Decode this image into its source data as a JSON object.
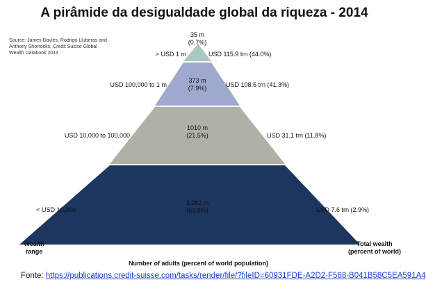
{
  "title": "A pirâmide da desigualdade global da riqueza - 2014",
  "source_note": "Source: James Davies, Rodrigo Lluberas and Anthony Shorrocks, Credit Suisse Global Wealth Databook 2014",
  "axis": {
    "left_title_line1": "Wealth",
    "left_title_line2": "range",
    "right_title_line1": "Total wealth",
    "right_title_line2": "(percent of world)",
    "bottom_title": "Number of adults (percent of world population)"
  },
  "colors": {
    "tier1": "#a9c9c0",
    "tier2": "#9fa8cd",
    "tier3": "#b0b1a6",
    "tier4": "#1c3660"
  },
  "chart_data": {
    "type": "pyramid",
    "title": "A pirâmide da desigualdade global da riqueza - 2014",
    "tiers": [
      {
        "range": "> USD 1 m",
        "adults": "35 m",
        "adults_pct": "(0.7%)",
        "adults_millions": 35,
        "adults_percent": 0.7,
        "wealth": "USD 115.9 trn (44.0%)",
        "wealth_trn": 115.9,
        "wealth_percent": 44.0
      },
      {
        "range": "USD 100,000 to 1 m",
        "adults": "373 m",
        "adults_pct": "(7.9%)",
        "adults_millions": 373,
        "adults_percent": 7.9,
        "wealth": "USD 108.5 trn (41.3%)",
        "wealth_trn": 108.5,
        "wealth_percent": 41.3
      },
      {
        "range": "USD 10,000 to 100,000",
        "adults": "1010 m",
        "adults_pct": "(21.5%)",
        "adults_millions": 1010,
        "adults_percent": 21.5,
        "wealth": "USD 31.1 trn (11.8%)",
        "wealth_trn": 31.1,
        "wealth_percent": 11.8
      },
      {
        "range": "< USD 10,000",
        "adults": "3,282 m",
        "adults_pct": "(69.8%)",
        "adults_millions": 3282,
        "adults_percent": 69.8,
        "wealth": "USD 7.6 trn (2.9%)",
        "wealth_trn": 7.6,
        "wealth_percent": 2.9
      }
    ]
  },
  "footer": {
    "prefix": "Fonte:",
    "link": "https://publications.credit-suisse.com/tasks/render/file/?fileID=60931FDE-A2D2-F568-B041B58C5EA591A4"
  }
}
